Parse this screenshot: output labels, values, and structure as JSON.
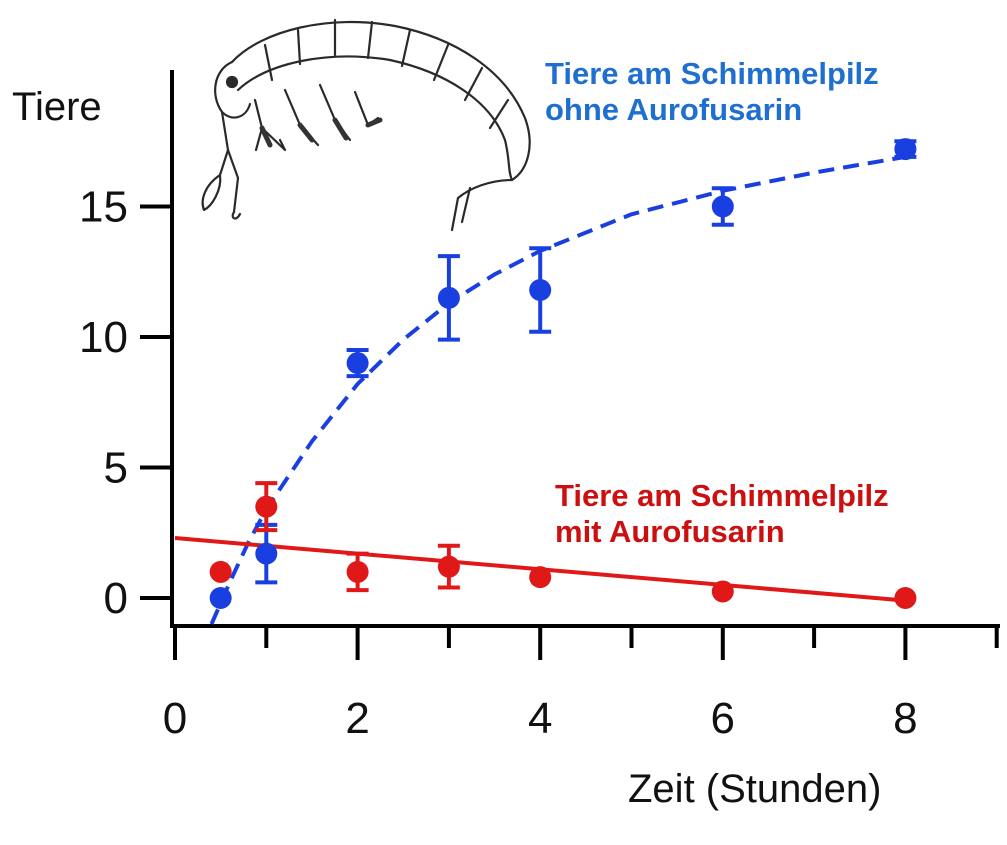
{
  "chart_data": {
    "type": "scatter",
    "xlabel": "Zeit (Stunden)",
    "ylabel": "Tiere",
    "xlim": [
      0,
      9
    ],
    "ylim": [
      -1,
      17.5
    ],
    "x_ticks": [
      "0",
      "2",
      "4",
      "6",
      "8"
    ],
    "y_ticks": [
      "0",
      "5",
      "10",
      "15"
    ],
    "grid": false,
    "legend": "inline labels",
    "series": [
      {
        "key": "ohne",
        "label_lines": [
          "Tiere am Schimmelpilz",
          "ohne Aurofusarin"
        ],
        "color": "#1a3fe0",
        "label_color": "#1f6fd0",
        "line_style": "dashed",
        "points": [
          {
            "x": 0.5,
            "y": 0.0,
            "err": 0.0
          },
          {
            "x": 1.0,
            "y": 1.7,
            "err": 1.1
          },
          {
            "x": 2.0,
            "y": 9.0,
            "err": 0.5
          },
          {
            "x": 3.0,
            "y": 11.5,
            "err": 1.6
          },
          {
            "x": 4.0,
            "y": 11.8,
            "err": 1.6
          },
          {
            "x": 6.0,
            "y": 15.0,
            "err": 0.7
          },
          {
            "x": 8.0,
            "y": 17.2,
            "err": 0.3
          }
        ],
        "fit": [
          {
            "x": 0.4,
            "y": -1.0
          },
          {
            "x": 0.6,
            "y": 0.6
          },
          {
            "x": 0.8,
            "y": 2.1
          },
          {
            "x": 1.0,
            "y": 3.4
          },
          {
            "x": 1.5,
            "y": 6.0
          },
          {
            "x": 2.0,
            "y": 8.2
          },
          {
            "x": 2.5,
            "y": 9.9
          },
          {
            "x": 3.0,
            "y": 11.3
          },
          {
            "x": 3.5,
            "y": 12.4
          },
          {
            "x": 4.0,
            "y": 13.3
          },
          {
            "x": 5.0,
            "y": 14.7
          },
          {
            "x": 6.0,
            "y": 15.6
          },
          {
            "x": 7.0,
            "y": 16.3
          },
          {
            "x": 8.0,
            "y": 16.9
          }
        ]
      },
      {
        "key": "mit",
        "label_lines": [
          "Tiere am Schimmelpilz",
          "mit Aurofusarin"
        ],
        "color": "#e01818",
        "label_color": "#cc1010",
        "line_style": "solid",
        "points": [
          {
            "x": 0.5,
            "y": 1.0,
            "err": 0.0
          },
          {
            "x": 1.0,
            "y": 3.5,
            "err": 0.9
          },
          {
            "x": 2.0,
            "y": 1.0,
            "err": 0.7
          },
          {
            "x": 3.0,
            "y": 1.2,
            "err": 0.8
          },
          {
            "x": 4.0,
            "y": 0.8,
            "err": 0.0
          },
          {
            "x": 6.0,
            "y": 0.25,
            "err": 0.0
          },
          {
            "x": 8.0,
            "y": 0.0,
            "err": 0.0
          }
        ],
        "fit": [
          {
            "x": 0.0,
            "y": 2.3
          },
          {
            "x": 8.0,
            "y": -0.1
          }
        ]
      }
    ]
  },
  "illustration": "springtail-insect-drawing"
}
